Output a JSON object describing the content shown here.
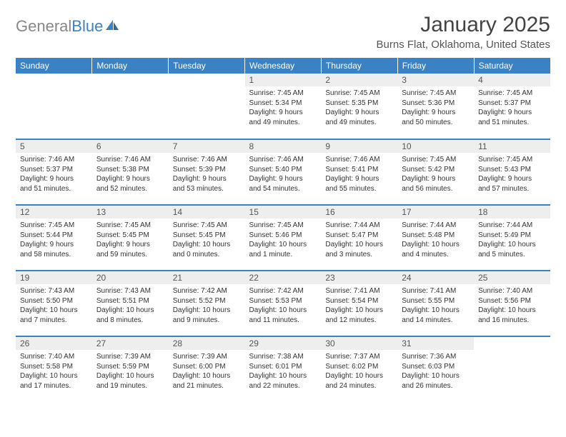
{
  "logo": {
    "text_gray": "General",
    "text_blue": "Blue"
  },
  "title": "January 2025",
  "location": "Burns Flat, Oklahoma, United States",
  "colors": {
    "header_bg": "#3b82c4",
    "header_text": "#ffffff",
    "daynum_bg": "#eeeeee",
    "body_text": "#333333",
    "page_bg": "#ffffff"
  },
  "typography": {
    "title_fontsize": 30,
    "location_fontsize": 15,
    "dayhead_fontsize": 12,
    "body_fontsize": 10
  },
  "day_headers": [
    "Sunday",
    "Monday",
    "Tuesday",
    "Wednesday",
    "Thursday",
    "Friday",
    "Saturday"
  ],
  "weeks": [
    [
      {
        "n": "",
        "lines": [
          "",
          "",
          "",
          ""
        ]
      },
      {
        "n": "",
        "lines": [
          "",
          "",
          "",
          ""
        ]
      },
      {
        "n": "",
        "lines": [
          "",
          "",
          "",
          ""
        ]
      },
      {
        "n": "1",
        "lines": [
          "Sunrise: 7:45 AM",
          "Sunset: 5:34 PM",
          "Daylight: 9 hours",
          "and 49 minutes."
        ]
      },
      {
        "n": "2",
        "lines": [
          "Sunrise: 7:45 AM",
          "Sunset: 5:35 PM",
          "Daylight: 9 hours",
          "and 49 minutes."
        ]
      },
      {
        "n": "3",
        "lines": [
          "Sunrise: 7:45 AM",
          "Sunset: 5:36 PM",
          "Daylight: 9 hours",
          "and 50 minutes."
        ]
      },
      {
        "n": "4",
        "lines": [
          "Sunrise: 7:45 AM",
          "Sunset: 5:37 PM",
          "Daylight: 9 hours",
          "and 51 minutes."
        ]
      }
    ],
    [
      {
        "n": "5",
        "lines": [
          "Sunrise: 7:46 AM",
          "Sunset: 5:37 PM",
          "Daylight: 9 hours",
          "and 51 minutes."
        ]
      },
      {
        "n": "6",
        "lines": [
          "Sunrise: 7:46 AM",
          "Sunset: 5:38 PM",
          "Daylight: 9 hours",
          "and 52 minutes."
        ]
      },
      {
        "n": "7",
        "lines": [
          "Sunrise: 7:46 AM",
          "Sunset: 5:39 PM",
          "Daylight: 9 hours",
          "and 53 minutes."
        ]
      },
      {
        "n": "8",
        "lines": [
          "Sunrise: 7:46 AM",
          "Sunset: 5:40 PM",
          "Daylight: 9 hours",
          "and 54 minutes."
        ]
      },
      {
        "n": "9",
        "lines": [
          "Sunrise: 7:46 AM",
          "Sunset: 5:41 PM",
          "Daylight: 9 hours",
          "and 55 minutes."
        ]
      },
      {
        "n": "10",
        "lines": [
          "Sunrise: 7:45 AM",
          "Sunset: 5:42 PM",
          "Daylight: 9 hours",
          "and 56 minutes."
        ]
      },
      {
        "n": "11",
        "lines": [
          "Sunrise: 7:45 AM",
          "Sunset: 5:43 PM",
          "Daylight: 9 hours",
          "and 57 minutes."
        ]
      }
    ],
    [
      {
        "n": "12",
        "lines": [
          "Sunrise: 7:45 AM",
          "Sunset: 5:44 PM",
          "Daylight: 9 hours",
          "and 58 minutes."
        ]
      },
      {
        "n": "13",
        "lines": [
          "Sunrise: 7:45 AM",
          "Sunset: 5:45 PM",
          "Daylight: 9 hours",
          "and 59 minutes."
        ]
      },
      {
        "n": "14",
        "lines": [
          "Sunrise: 7:45 AM",
          "Sunset: 5:45 PM",
          "Daylight: 10 hours",
          "and 0 minutes."
        ]
      },
      {
        "n": "15",
        "lines": [
          "Sunrise: 7:45 AM",
          "Sunset: 5:46 PM",
          "Daylight: 10 hours",
          "and 1 minute."
        ]
      },
      {
        "n": "16",
        "lines": [
          "Sunrise: 7:44 AM",
          "Sunset: 5:47 PM",
          "Daylight: 10 hours",
          "and 3 minutes."
        ]
      },
      {
        "n": "17",
        "lines": [
          "Sunrise: 7:44 AM",
          "Sunset: 5:48 PM",
          "Daylight: 10 hours",
          "and 4 minutes."
        ]
      },
      {
        "n": "18",
        "lines": [
          "Sunrise: 7:44 AM",
          "Sunset: 5:49 PM",
          "Daylight: 10 hours",
          "and 5 minutes."
        ]
      }
    ],
    [
      {
        "n": "19",
        "lines": [
          "Sunrise: 7:43 AM",
          "Sunset: 5:50 PM",
          "Daylight: 10 hours",
          "and 7 minutes."
        ]
      },
      {
        "n": "20",
        "lines": [
          "Sunrise: 7:43 AM",
          "Sunset: 5:51 PM",
          "Daylight: 10 hours",
          "and 8 minutes."
        ]
      },
      {
        "n": "21",
        "lines": [
          "Sunrise: 7:42 AM",
          "Sunset: 5:52 PM",
          "Daylight: 10 hours",
          "and 9 minutes."
        ]
      },
      {
        "n": "22",
        "lines": [
          "Sunrise: 7:42 AM",
          "Sunset: 5:53 PM",
          "Daylight: 10 hours",
          "and 11 minutes."
        ]
      },
      {
        "n": "23",
        "lines": [
          "Sunrise: 7:41 AM",
          "Sunset: 5:54 PM",
          "Daylight: 10 hours",
          "and 12 minutes."
        ]
      },
      {
        "n": "24",
        "lines": [
          "Sunrise: 7:41 AM",
          "Sunset: 5:55 PM",
          "Daylight: 10 hours",
          "and 14 minutes."
        ]
      },
      {
        "n": "25",
        "lines": [
          "Sunrise: 7:40 AM",
          "Sunset: 5:56 PM",
          "Daylight: 10 hours",
          "and 16 minutes."
        ]
      }
    ],
    [
      {
        "n": "26",
        "lines": [
          "Sunrise: 7:40 AM",
          "Sunset: 5:58 PM",
          "Daylight: 10 hours",
          "and 17 minutes."
        ]
      },
      {
        "n": "27",
        "lines": [
          "Sunrise: 7:39 AM",
          "Sunset: 5:59 PM",
          "Daylight: 10 hours",
          "and 19 minutes."
        ]
      },
      {
        "n": "28",
        "lines": [
          "Sunrise: 7:39 AM",
          "Sunset: 6:00 PM",
          "Daylight: 10 hours",
          "and 21 minutes."
        ]
      },
      {
        "n": "29",
        "lines": [
          "Sunrise: 7:38 AM",
          "Sunset: 6:01 PM",
          "Daylight: 10 hours",
          "and 22 minutes."
        ]
      },
      {
        "n": "30",
        "lines": [
          "Sunrise: 7:37 AM",
          "Sunset: 6:02 PM",
          "Daylight: 10 hours",
          "and 24 minutes."
        ]
      },
      {
        "n": "31",
        "lines": [
          "Sunrise: 7:36 AM",
          "Sunset: 6:03 PM",
          "Daylight: 10 hours",
          "and 26 minutes."
        ]
      },
      {
        "n": "",
        "lines": [
          "",
          "",
          "",
          ""
        ]
      }
    ]
  ]
}
